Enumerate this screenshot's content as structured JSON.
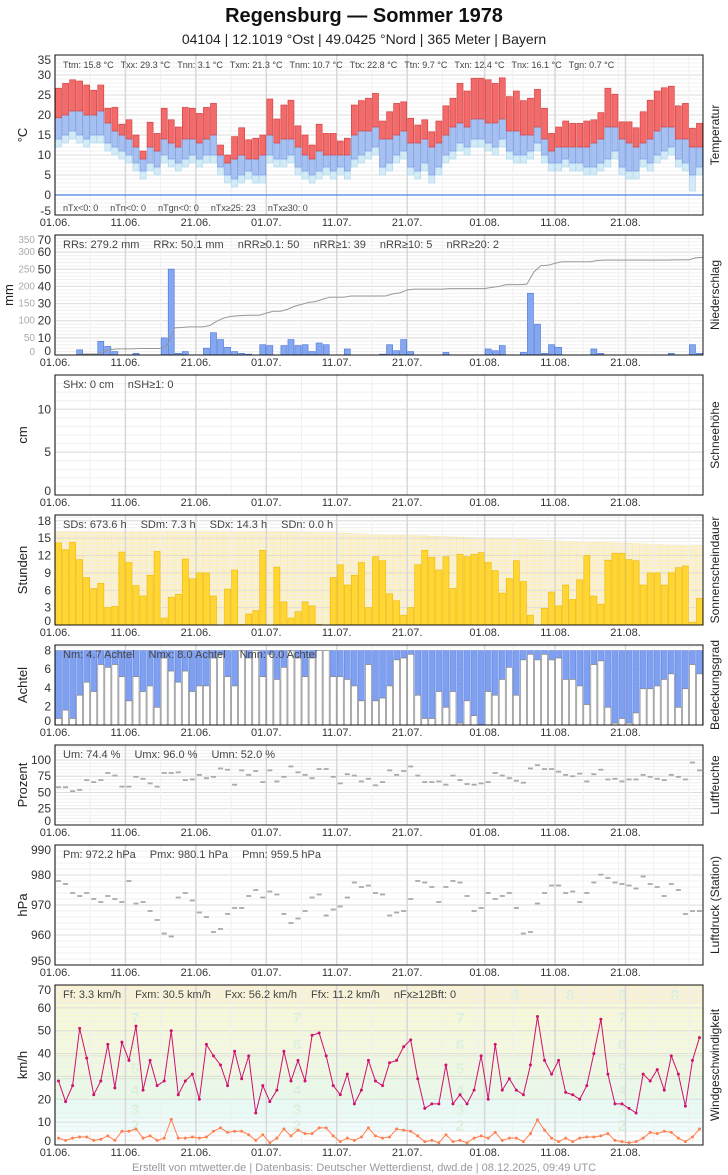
{
  "header": {
    "title": "Regensburg  —  Sommer 1978",
    "subtitle": "04104  |  12.1019 °Ost  |  49.0425 °Nord  |  365 Meter  |  Bayern"
  },
  "footer": "Erstellt von mtwetter.de | Datenbasis: Deutscher Wetterdienst, dwd.de | 08.12.2025, 09:49 UTC",
  "colors": {
    "tmax": "#f26a6a",
    "tmean": "#a6c0f2",
    "tgmin": "#d3ebf6",
    "zero_line": "#4a7fe8",
    "precip": "#84a7f2",
    "precip_sum": "#999999",
    "sunshine": "#ffd633",
    "sun_possible": "#fdf0c2",
    "cloud_blue": "#7f9ff0",
    "humidity": "#aaaaaa",
    "pressure": "#aaaaaa",
    "gust": "#d0106f",
    "wind_mean": "#ff8050"
  },
  "chart_data": [
    {
      "type": "bar",
      "panel": "Temperatur",
      "ylabel": "°C",
      "side_label": "Temperatur",
      "ylim": [
        -5,
        35
      ],
      "yticks": [
        "35",
        "30",
        "25",
        "20",
        "15",
        "10",
        "5",
        "0",
        "-5"
      ],
      "xticks": [
        "01.06.",
        "11.06.",
        "21.06.",
        "01.07.",
        "11.07.",
        "21.07.",
        "01.08.",
        "11.08.",
        "21.08."
      ],
      "stats_top": [
        "Ttm: 15.8 °C",
        "Txx: 29.3 °C",
        "Tnn: 3.1 °C",
        "Txm: 21.3 °C",
        "Tnm: 10.7 °C",
        "Ttx: 22.8 °C",
        "Ttn: 9.7 °C",
        "Txn: 12.4 °C",
        "Tnx: 16.1 °C",
        "Tgn: 0.7 °C"
      ],
      "stats_bottom": [
        "nTx<0: 0",
        "nTn<0: 0",
        "nTgn<0: 0",
        "nTx≥25: 23",
        "nTx≥30: 0"
      ],
      "tmax": [
        26.7,
        27.9,
        28.8,
        28.5,
        27.5,
        26.2,
        27.5,
        21.7,
        21.9,
        17.7,
        18.8,
        15,
        11,
        18.2,
        15.4,
        21.7,
        18.8,
        17,
        21.9,
        21.7,
        20.4,
        21.9,
        22.9,
        12.5,
        10,
        14.6,
        16.8,
        13.8,
        14.2,
        15,
        24,
        19,
        22.5,
        23.7,
        17.3,
        15,
        12.5,
        17.7,
        15.4,
        15.4,
        13.5,
        14.2,
        22.5,
        23.6,
        24.2,
        25.4,
        18.5,
        20.8,
        22.9,
        23.3,
        19.2,
        17.5,
        18.8,
        15.8,
        18.5,
        22.3,
        24.2,
        27.9,
        26,
        29.2,
        29.2,
        28.8,
        27.9,
        29.3,
        24.6,
        26,
        23.6,
        24.2,
        26.4,
        21.7,
        15.4,
        17,
        18.5,
        17.9,
        17.9,
        18.5,
        18.8,
        20.6,
        26.7,
        25.2,
        18.3,
        18.3,
        16.8,
        20.8,
        23.7,
        26,
        26.8,
        27.2,
        22.3,
        22.9,
        16.7,
        17.9
      ],
      "tmean": [
        19.3,
        20,
        21,
        21,
        20,
        20,
        21,
        18,
        16,
        15,
        14,
        12,
        9,
        12,
        11,
        14,
        13,
        12,
        14,
        14,
        13,
        14,
        15,
        10,
        8,
        9,
        10,
        9,
        9,
        10,
        15,
        13,
        14,
        14,
        12,
        10,
        9,
        11,
        10,
        10,
        10,
        10,
        15,
        16,
        16,
        17,
        14,
        14,
        15,
        16,
        13,
        13,
        14,
        12,
        13,
        15,
        17,
        18,
        17,
        19,
        19,
        18,
        18,
        19,
        16,
        16,
        15,
        15,
        17,
        14,
        11,
        12,
        12,
        12,
        12,
        12,
        13,
        14,
        17,
        17,
        14,
        13,
        12,
        13,
        14,
        16,
        17,
        17,
        14,
        14,
        12,
        12
      ],
      "tmin": [
        14,
        15,
        16,
        15,
        14,
        15,
        15,
        13,
        12,
        11,
        10,
        8,
        6,
        8,
        7,
        10,
        9,
        8,
        9,
        10,
        9,
        10,
        10,
        7,
        5,
        4,
        5,
        6,
        5,
        5,
        10,
        9,
        9,
        10,
        7,
        6,
        5,
        6,
        7,
        6,
        7,
        6,
        9,
        10,
        11,
        12,
        7,
        8,
        10,
        11,
        7,
        6,
        8,
        5,
        7,
        10,
        11,
        13,
        12,
        14,
        14,
        13,
        12,
        14,
        11,
        10,
        10,
        11,
        13,
        10,
        8,
        8,
        9,
        8,
        8,
        7,
        7,
        8,
        9,
        11,
        7,
        6,
        6,
        9,
        8,
        10,
        11,
        12,
        9,
        8,
        5,
        7
      ],
      "tgmin": [
        12,
        13,
        14,
        13,
        12,
        13,
        13,
        11,
        10,
        9,
        8,
        6,
        4,
        6,
        5,
        8,
        7,
        6,
        7,
        8,
        7,
        8,
        8,
        5,
        3,
        2,
        3,
        4,
        3,
        3,
        8,
        7,
        7,
        8,
        5,
        4,
        3,
        4,
        5,
        4,
        5,
        4,
        7,
        8,
        9,
        10,
        5,
        6,
        8,
        9,
        5,
        4,
        6,
        3,
        5,
        8,
        9,
        11,
        10,
        12,
        12,
        11,
        10,
        12,
        9,
        8,
        8,
        9,
        11,
        8,
        6,
        6,
        7,
        6,
        6,
        5,
        5,
        6,
        7,
        9,
        5,
        4,
        4,
        7,
        6,
        8,
        9,
        10,
        7,
        6,
        1,
        5
      ]
    },
    {
      "type": "bar",
      "panel": "Niederschlag",
      "ylabel": "mm",
      "side_label": "Niederschlag",
      "ylim": [
        0,
        70
      ],
      "ylim_sum": [
        0,
        350
      ],
      "yticks": [
        "70",
        "60",
        "50",
        "40",
        "30",
        "20",
        "10",
        "0"
      ],
      "yticks_sum": [
        "350",
        "300",
        "250",
        "200",
        "150",
        "100",
        "50",
        "0"
      ],
      "xticks": [
        "01.06.",
        "11.06.",
        "21.06.",
        "01.07.",
        "11.07.",
        "21.07.",
        "01.08.",
        "11.08.",
        "21.08."
      ],
      "stats_top": [
        "RRs: 279.2 mm",
        "RRx: 50.1 mm",
        "nRR≥0.1: 50",
        "nRR≥1: 39",
        "nRR≥10: 5",
        "nRR≥20: 2"
      ],
      "values": [
        0,
        0,
        0,
        3,
        0,
        0,
        8,
        5,
        2,
        0,
        0,
        1,
        0,
        0,
        0,
        10,
        50.1,
        1,
        2,
        0,
        0,
        4,
        13,
        9,
        4.5,
        2,
        1,
        0.5,
        0,
        6,
        5.5,
        0,
        5.5,
        9,
        5.5,
        6,
        2,
        7,
        6,
        0,
        0,
        3.5,
        0,
        0,
        0,
        0,
        0.5,
        6,
        2.5,
        9,
        2,
        0,
        0,
        0,
        0,
        1.5,
        0,
        0,
        0,
        0,
        0,
        3.5,
        2.5,
        5.5,
        0,
        0,
        1.5,
        36,
        18,
        1,
        6,
        4.5,
        0,
        0,
        0,
        0,
        3.5,
        1,
        0,
        0,
        0,
        0,
        0,
        0,
        0,
        0,
        0,
        1,
        0,
        0,
        6,
        1
      ]
    },
    {
      "type": "bar",
      "panel": "Schneehöhe",
      "ylabel": "cm",
      "side_label": "Schneehöhe",
      "ylim": [
        0,
        14
      ],
      "yticks": [
        "10",
        "5",
        "0"
      ],
      "xticks": [
        "01.06.",
        "11.06.",
        "21.06.",
        "01.07.",
        "11.07.",
        "21.07.",
        "01.08.",
        "11.08.",
        "21.08."
      ],
      "stats_top": [
        "SHx: 0 cm",
        "nSH≥1: 0"
      ],
      "values": []
    },
    {
      "type": "bar",
      "panel": "Sonnenscheindauer",
      "ylabel": "Stunden",
      "side_label": "Sonnenscheindauer",
      "ylim": [
        0,
        19
      ],
      "yticks": [
        "18",
        "15",
        "12",
        "9",
        "6",
        "3",
        "0"
      ],
      "xticks": [
        "01.06.",
        "11.06.",
        "21.06.",
        "01.07.",
        "11.07.",
        "21.07.",
        "01.08.",
        "11.08.",
        "21.08."
      ],
      "stats_top": [
        "SDs: 673.6 h",
        "SDm: 7.3 h",
        "SDx: 14.3 h",
        "SDn: 0.0 h"
      ],
      "possible_hours_by_date": {
        "01.06.": 16.1,
        "21.06.": 16.3,
        "11.07.": 15.9,
        "01.08.": 15.0,
        "21.08.": 14.1,
        "31.08.": 13.7
      },
      "values": [
        14.2,
        13,
        14.3,
        11.3,
        8.2,
        6.3,
        7.2,
        3,
        3.2,
        12.6,
        10.8,
        6.8,
        5,
        8.6,
        12.7,
        1.2,
        4.8,
        5.3,
        11.4,
        8,
        9,
        9,
        5,
        0,
        6.2,
        9.5,
        0.1,
        1.9,
        2.5,
        12.9,
        0,
        10,
        4,
        1.2,
        2.3,
        4,
        3.3,
        0.1,
        0,
        8.2,
        10.4,
        6.9,
        8.6,
        10.8,
        3,
        11.8,
        11.1,
        5.4,
        4.2,
        1.7,
        3,
        10.4,
        12.9,
        11.7,
        9.5,
        11.8,
        6.3,
        12.2,
        11.8,
        12.2,
        12.5,
        10.8,
        9.4,
        5.5,
        8,
        11.1,
        7.5,
        1.7,
        0,
        2.9,
        5.7,
        3.3,
        6.9,
        4.4,
        7.8,
        12,
        5,
        3.6,
        11.2,
        12.4,
        12.4,
        11.3,
        11.1,
        6.9,
        9,
        9,
        6.9,
        9,
        9.9,
        10.2,
        0.5,
        4.6
      ]
    },
    {
      "type": "bar",
      "panel": "Bedeckungsgrad",
      "ylabel": "Achtel",
      "side_label": "Bedeckungsgrad",
      "ylim": [
        0,
        8.6
      ],
      "yticks": [
        "8",
        "6",
        "4",
        "2",
        "0"
      ],
      "xticks": [
        "01.06.",
        "11.06.",
        "21.06.",
        "01.07.",
        "11.07.",
        "21.07.",
        "01.08.",
        "11.08.",
        "21.08."
      ],
      "stats_top": [
        "Nm: 4.7 Achtel",
        "Nmx: 8.0 Achtel",
        "Nmn: 0.0 Achtel"
      ],
      "values": [
        0.7,
        1.6,
        0.7,
        3.2,
        4.6,
        3.6,
        6.5,
        6.2,
        6.5,
        5.2,
        2.6,
        5.2,
        3.6,
        4.2,
        1.9,
        7.2,
        5.8,
        4.6,
        5.8,
        3.6,
        4.2,
        4.2,
        7.2,
        7.6,
        5.2,
        4.2,
        8,
        7.2,
        8,
        5.2,
        7.6,
        4.9,
        6.2,
        8,
        7.2,
        5.2,
        7.2,
        8,
        8,
        5.2,
        5.2,
        4.9,
        4.2,
        2.6,
        6.5,
        2.6,
        2.9,
        4.2,
        7,
        7.2,
        7.6,
        3.2,
        0.7,
        0.7,
        3.6,
        1.9,
        3.6,
        0.2,
        2.6,
        1,
        0,
        3.6,
        3.2,
        4.9,
        6.2,
        3.2,
        7,
        7.6,
        7,
        7.6,
        7,
        7.2,
        4.9,
        4.9,
        4.2,
        2.2,
        6.5,
        6.9,
        1.9,
        0.2,
        0.7,
        0.2,
        1.3,
        3.9,
        3.9,
        4.2,
        4.9,
        5.5,
        1.9,
        3.9,
        6.5,
        5.5
      ]
    },
    {
      "type": "scatter",
      "panel": "Luftfeuchte",
      "ylabel": "Prozent",
      "side_label": "Luftfeuchte",
      "ylim": [
        0,
        123
      ],
      "yticks": [
        "100",
        "75",
        "50",
        "25",
        "0"
      ],
      "xticks": [
        "01.06.",
        "11.06.",
        "21.06.",
        "01.07.",
        "11.07.",
        "21.07.",
        "01.08.",
        "11.08.",
        "21.08."
      ],
      "stats_top": [
        "Um: 74.4 %",
        "Umx: 96.0 %",
        "Umn: 52.0 %"
      ],
      "values": [
        58,
        58,
        52,
        54,
        69,
        66,
        69,
        80,
        76,
        59,
        59,
        74,
        71,
        64,
        59,
        80,
        80,
        81,
        69,
        70,
        77,
        72,
        74,
        87,
        85,
        62,
        84,
        77,
        83,
        66,
        84,
        67,
        74,
        90,
        81,
        77,
        72,
        86,
        86,
        74,
        64,
        78,
        76,
        67,
        71,
        61,
        66,
        84,
        77,
        83,
        90,
        76,
        66,
        66,
        67,
        62,
        76,
        69,
        63,
        62,
        64,
        66,
        80,
        76,
        72,
        68,
        65,
        87,
        92,
        86,
        86,
        82,
        77,
        75,
        79,
        67,
        78,
        85,
        70,
        71,
        67,
        70,
        70,
        77,
        74,
        71,
        69,
        77,
        74,
        70,
        96,
        84
      ]
    },
    {
      "type": "scatter",
      "panel": "Luftdruck (Station)",
      "ylabel": "hPa",
      "side_label": "Luftdruck (Station)",
      "ylim": [
        950,
        990
      ],
      "yticks": [
        "990",
        "980",
        "970",
        "960",
        "950"
      ],
      "xticks": [
        "01.06.",
        "11.06.",
        "21.06.",
        "01.07.",
        "11.07.",
        "21.07.",
        "01.08.",
        "11.08.",
        "21.08."
      ],
      "stats_top": [
        "Pm: 972.2 hPa",
        "Pmx: 980.1 hPa",
        "Pmn: 959.5 hPa"
      ],
      "values": [
        978,
        977,
        974,
        973,
        974,
        972,
        971,
        973,
        972,
        971,
        978,
        970.5,
        971,
        968,
        965,
        960.5,
        959.5,
        972.5,
        974,
        971.5,
        967.5,
        966,
        961,
        962,
        967,
        969,
        969,
        973,
        975,
        972.5,
        974.5,
        973.5,
        967,
        964,
        965.5,
        968,
        972.5,
        973.5,
        966.5,
        968.5,
        969.5,
        972.5,
        977.5,
        976,
        976.5,
        974,
        973.5,
        966.5,
        967.5,
        968,
        972,
        978,
        977.5,
        976,
        971,
        976,
        978,
        977.5,
        973,
        968,
        969,
        974,
        972,
        973,
        974,
        969,
        960.5,
        961,
        970.5,
        974,
        976.5,
        976.5,
        974,
        974.5,
        971,
        974,
        977.5,
        980.1,
        979,
        977.5,
        977,
        976.5,
        975.5,
        979.5,
        977,
        976,
        973,
        977,
        975,
        967,
        968,
        968
      ]
    },
    {
      "type": "line",
      "panel": "Windgeschwindigkeit",
      "ylabel": "km/h",
      "side_label": "Windgeschwindigkeit",
      "ylim": [
        0,
        70
      ],
      "yticks": [
        "70",
        "60",
        "50",
        "40",
        "30",
        "20",
        "10",
        "0"
      ],
      "xticks": [
        "01.06.",
        "11.06.",
        "21.06.",
        "01.07.",
        "11.07.",
        "21.07.",
        "01.08.",
        "11.08.",
        "21.08."
      ],
      "stats_top": [
        "Ff: 3.3 km/h",
        "Fxm: 30.5 km/h",
        "Fxx: 56.2 km/h",
        "Ffx: 11.2 km/h",
        "nFx≥12Bft: 0"
      ],
      "beaufort_labels": [
        "2",
        "3",
        "4",
        "5",
        "6",
        "7",
        "8"
      ],
      "beaufort_bounds_kmh": [
        6,
        12,
        20,
        29,
        39,
        50,
        62,
        75
      ],
      "series": [
        {
          "key": "gust",
          "values": [
            28,
            19,
            26,
            51,
            38,
            22,
            28,
            44,
            25,
            45,
            37,
            52,
            24,
            37,
            26,
            28,
            50,
            22,
            28,
            31,
            20,
            44,
            39,
            35,
            26,
            41,
            29,
            39,
            14,
            26,
            19,
            24,
            41,
            28,
            37,
            28,
            48,
            49,
            39,
            26,
            22,
            31,
            18,
            24,
            37,
            28,
            26,
            36,
            37,
            43,
            46,
            29,
            16,
            18,
            18,
            35,
            18,
            22,
            18,
            24,
            39,
            20,
            44,
            24,
            29,
            24,
            22,
            35,
            56.2,
            37,
            31,
            37,
            23,
            22,
            20,
            26,
            40,
            55,
            31,
            18,
            18,
            16,
            14,
            31,
            28,
            33,
            24,
            39,
            31,
            17,
            37,
            47
          ]
        },
        {
          "key": "mean",
          "values": [
            3,
            2,
            3,
            3.5,
            3.5,
            2,
            2.5,
            4,
            2,
            6,
            6,
            7,
            3,
            4,
            2,
            3,
            11.2,
            3,
            3,
            3.5,
            3,
            3.5,
            6,
            7.5,
            5.5,
            6,
            6,
            4.5,
            2,
            4.5,
            1,
            3,
            7,
            4,
            6.5,
            5,
            5,
            7.5,
            7.5,
            4,
            1.5,
            3,
            2,
            3.5,
            7.5,
            4,
            3,
            3.5,
            7,
            6.5,
            6,
            4,
            1.5,
            2,
            1,
            4.5,
            1.5,
            2,
            1,
            3,
            4,
            3,
            5.5,
            2,
            3,
            3,
            1.5,
            5,
            11,
            6.5,
            3,
            1.5,
            3,
            1.5,
            3,
            3.5,
            3.5,
            4,
            5,
            2,
            1.5,
            1,
            1.5,
            3,
            5.5,
            5,
            6,
            5.5,
            3,
            1.5,
            3.5,
            7
          ]
        }
      ]
    }
  ]
}
